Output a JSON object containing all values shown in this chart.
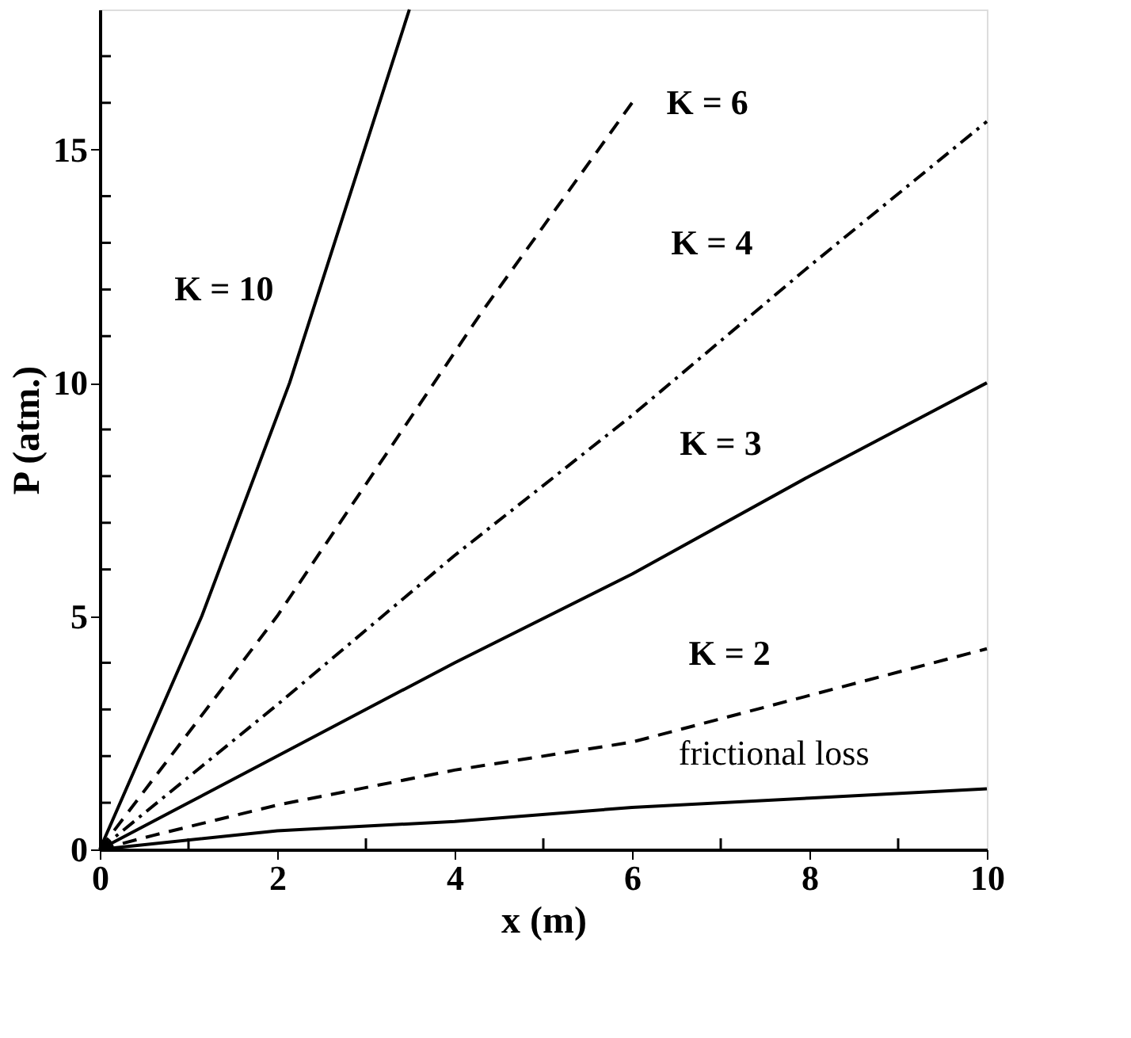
{
  "chart_data": {
    "type": "line",
    "xlabel": "x (m)",
    "ylabel": "P  (atm.)",
    "xlim": [
      0,
      10
    ],
    "ylim": [
      0,
      18
    ],
    "xticks": [
      0,
      {
        "value": 1,
        "label": null
      },
      2,
      {
        "value": 3,
        "label": null
      },
      4,
      {
        "value": 5,
        "label": null
      },
      6,
      {
        "value": 7,
        "label": null
      },
      8,
      {
        "value": 9,
        "label": null
      },
      10
    ],
    "yticks": [
      0,
      {
        "value": 1,
        "label": null
      },
      {
        "value": 2,
        "label": null
      },
      {
        "value": 3,
        "label": null
      },
      {
        "value": 4,
        "label": null
      },
      5,
      {
        "value": 6,
        "label": null
      },
      {
        "value": 7,
        "label": null
      },
      {
        "value": 8,
        "label": null
      },
      {
        "value": 9,
        "label": null
      },
      10,
      {
        "value": 11,
        "label": null
      },
      {
        "value": 12,
        "label": null
      },
      {
        "value": 13,
        "label": null
      },
      {
        "value": 14,
        "label": null
      },
      15,
      {
        "value": 16,
        "label": null
      },
      {
        "value": 17,
        "label": null
      }
    ],
    "grid": false,
    "marker": "none",
    "series": [
      {
        "color": "#000000",
        "line_style": "solid",
        "x": [
          0,
          1.15,
          2.14,
          3.49
        ],
        "values": [
          0,
          5,
          10,
          18
        ]
      },
      {
        "color": "#000000",
        "line_style": "dashed",
        "x": [
          0,
          2,
          4.3,
          6
        ],
        "values": [
          0,
          5,
          11.5,
          16
        ]
      },
      {
        "color": "#000000",
        "line_style": "dashdot",
        "x": [
          0,
          2,
          4,
          6,
          8,
          10
        ],
        "values": [
          0,
          3.1,
          6.3,
          9.3,
          12.5,
          15.6
        ]
      },
      {
        "color": "#000000",
        "line_style": "solid",
        "x": [
          0,
          2,
          4,
          6,
          8,
          10
        ],
        "values": [
          0,
          2,
          4,
          5.9,
          8,
          10
        ]
      },
      {
        "color": "#000000",
        "line_style": "dashed",
        "x": [
          0,
          0.6,
          2,
          4,
          6,
          8,
          10
        ],
        "values": [
          0,
          0.3,
          0.95,
          1.7,
          2.3,
          3.3,
          4.3
        ]
      },
      {
        "color": "#000000",
        "line_style": "solid",
        "x": [
          0,
          2,
          4,
          6,
          8,
          10
        ],
        "values": [
          0,
          0.4,
          0.6,
          0.9,
          1.1,
          1.3
        ]
      }
    ],
    "annotations": [
      "K = 10",
      "K = 6",
      "K = 4",
      "K = 3",
      "K = 2",
      "frictional loss"
    ]
  }
}
